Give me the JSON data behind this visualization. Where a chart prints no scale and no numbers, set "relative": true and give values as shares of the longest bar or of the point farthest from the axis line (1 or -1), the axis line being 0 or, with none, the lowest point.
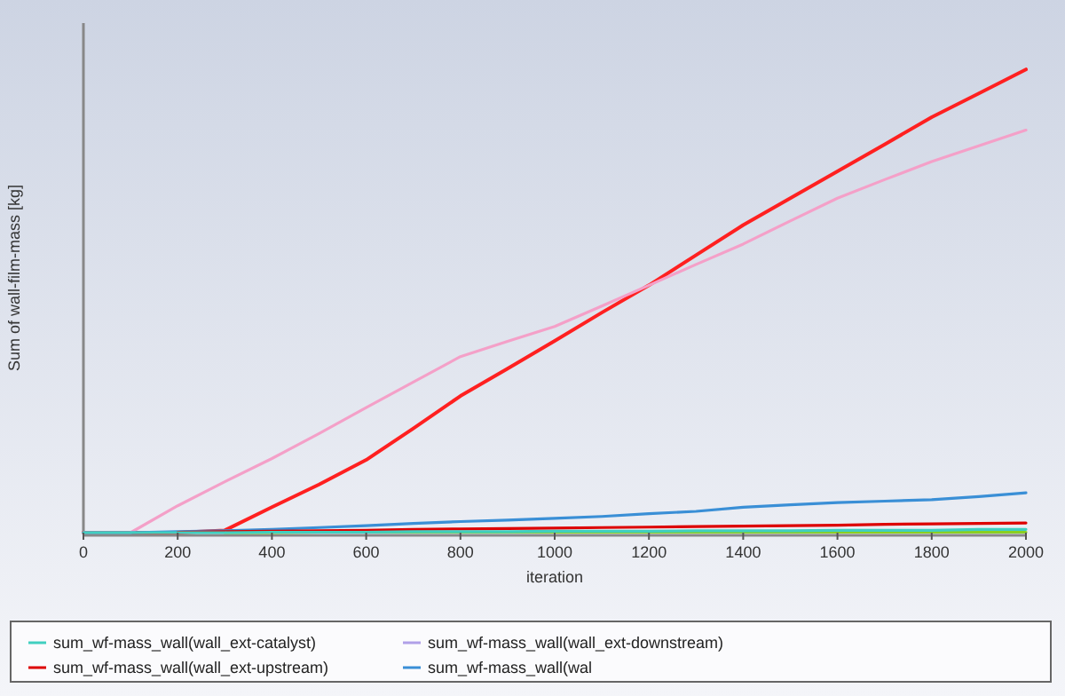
{
  "chart_data": {
    "type": "line",
    "xlabel": "iteration",
    "ylabel": "Sum of wall-film-mass [kg]",
    "relative": true,
    "xlim": [
      0,
      2000
    ],
    "xticks": [
      0,
      200,
      400,
      600,
      800,
      1000,
      1200,
      1400,
      1600,
      1800,
      2000
    ],
    "x": [
      0,
      100,
      200,
      300,
      400,
      500,
      600,
      700,
      800,
      900,
      1000,
      1100,
      1200,
      1300,
      1400,
      1500,
      1600,
      1700,
      1800,
      1900,
      2000
    ],
    "legend": "bottom",
    "series": [
      {
        "name": "sum_wf-mass_wall(wall_ext-catalyst)",
        "color": "#40cfc0",
        "values": [
          0,
          0,
          0,
          0,
          0.001,
          0.001,
          0.001,
          0.002,
          0.002,
          0.002,
          0.003,
          0.003,
          0.003,
          0.004,
          0.004,
          0.004,
          0.005,
          0.005,
          0.005,
          0.007,
          0.007
        ]
      },
      {
        "name": "sum_wf-mass_wall(wall_ext-downstream)",
        "color": "#b0a0e8",
        "values": [
          null,
          null,
          null,
          null,
          null,
          null,
          null,
          null,
          null,
          null,
          null,
          null,
          null,
          null,
          null,
          null,
          null,
          null,
          null,
          null,
          null
        ]
      },
      {
        "name": "sum_wf-mass_wall(wall_ext-upstream)",
        "color": "#dd0000",
        "values": [
          null,
          null,
          0.001,
          0.002,
          0.003,
          0.004,
          0.005,
          0.007,
          0.008,
          0.009,
          0.01,
          0.011,
          0.012,
          0.013,
          0.014,
          0.015,
          0.016,
          0.018,
          0.019,
          0.02,
          0.021
        ]
      },
      {
        "name": "sum_wf-mass_wall(wal",
        "color": "#3a8fd6",
        "values": [
          0,
          0,
          0.002,
          0.004,
          0.007,
          0.011,
          0.015,
          0.02,
          0.024,
          0.027,
          0.031,
          0.035,
          0.041,
          0.046,
          0.055,
          0.06,
          0.065,
          0.068,
          0.071,
          0.078,
          0.086
        ]
      },
      {
        "color": "#8bd020",
        "values": [
          null,
          null,
          null,
          0,
          0,
          0.001,
          0.001,
          0.001,
          0.001,
          0.001,
          0.001,
          0.001,
          0.001,
          0.001,
          0.001,
          0.001,
          0.001,
          0.001,
          0.001,
          0.001,
          0.001
        ]
      },
      {
        "color": "#f4a0c8",
        "values": [
          0,
          0,
          0.058,
          0.11,
          0.16,
          0.214,
          0.27,
          0.325,
          0.38,
          0.413,
          0.445,
          0.489,
          0.534,
          0.579,
          0.623,
          0.673,
          0.722,
          0.762,
          0.801,
          0.835,
          0.869
        ]
      },
      {
        "color": "#ff2020",
        "values": [
          0,
          0,
          0,
          0.005,
          0.055,
          0.104,
          0.157,
          0.225,
          0.295,
          0.354,
          0.414,
          0.475,
          0.534,
          0.599,
          0.664,
          0.722,
          0.78,
          0.838,
          0.897,
          0.948,
          1
        ]
      }
    ]
  }
}
